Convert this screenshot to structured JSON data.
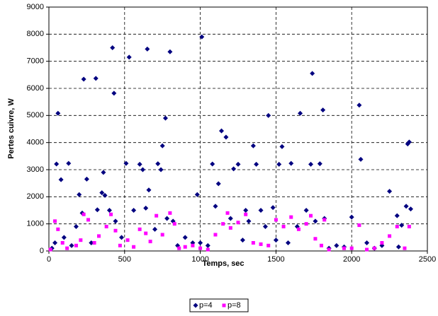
{
  "chart_data": {
    "type": "scatter",
    "x_label": "Temps, sec",
    "y_label": "Pertes cuivre, W",
    "xlim": [
      0,
      2500
    ],
    "xticks": [
      0,
      500,
      1000,
      1500,
      2000,
      2500
    ],
    "ylim": [
      0,
      9000
    ],
    "yticks": [
      0,
      1000,
      2000,
      3000,
      4000,
      5000,
      6000,
      7000,
      8000,
      9000
    ],
    "grid": true,
    "legend": "bottom",
    "series": [
      {
        "name": "p=4",
        "color": "#000080",
        "marker": "diamond",
        "x": [
          20,
          40,
          50,
          60,
          80,
          100,
          130,
          150,
          180,
          200,
          220,
          230,
          250,
          280,
          310,
          320,
          350,
          360,
          370,
          400,
          420,
          430,
          440,
          480,
          510,
          530,
          560,
          600,
          620,
          640,
          650,
          660,
          700,
          720,
          740,
          750,
          770,
          780,
          800,
          820,
          850,
          900,
          950,
          980,
          1000,
          1010,
          1050,
          1080,
          1100,
          1120,
          1140,
          1170,
          1200,
          1220,
          1250,
          1280,
          1300,
          1320,
          1350,
          1370,
          1400,
          1430,
          1450,
          1480,
          1500,
          1520,
          1540,
          1580,
          1600,
          1640,
          1660,
          1700,
          1730,
          1740,
          1760,
          1790,
          1810,
          1820,
          1850,
          1900,
          1950,
          2000,
          2050,
          2060,
          2100,
          2150,
          2200,
          2250,
          2300,
          2330,
          2370,
          2380,
          2360,
          2390,
          2310
        ],
        "values": [
          100,
          300,
          3210,
          5080,
          2630,
          500,
          3230,
          200,
          900,
          2080,
          1400,
          6340,
          2650,
          300,
          6370,
          1520,
          2150,
          2900,
          2050,
          1500,
          7500,
          5820,
          1100,
          500,
          3230,
          7150,
          1500,
          3200,
          3000,
          1580,
          7450,
          2250,
          800,
          3220,
          3000,
          3880,
          4900,
          1200,
          7350,
          1100,
          200,
          500,
          300,
          2080,
          300,
          7900,
          200,
          3210,
          1650,
          2480,
          4430,
          4200,
          1200,
          3030,
          3200,
          400,
          1500,
          1100,
          3880,
          3200,
          1500,
          900,
          5000,
          1600,
          400,
          3200,
          3850,
          300,
          3230,
          900,
          5080,
          1500,
          3200,
          6550,
          1100,
          3220,
          5200,
          1200,
          100,
          200,
          150,
          1250,
          5380,
          3380,
          300,
          100,
          200,
          2200,
          1300,
          950,
          3950,
          4020,
          1650,
          1550,
          150
        ]
      },
      {
        "name": "p=8",
        "color": "#ff00ff",
        "marker": "square",
        "x": [
          10,
          40,
          60,
          90,
          120,
          180,
          210,
          230,
          260,
          300,
          330,
          380,
          410,
          440,
          470,
          520,
          560,
          600,
          640,
          670,
          710,
          750,
          800,
          830,
          860,
          900,
          950,
          1000,
          1050,
          1100,
          1150,
          1180,
          1200,
          1250,
          1300,
          1350,
          1400,
          1450,
          1500,
          1550,
          1600,
          1650,
          1700,
          1730,
          1760,
          1800,
          1820,
          1850,
          1950,
          2000,
          2050,
          2100,
          2150,
          2200,
          2250,
          2300,
          2350,
          2380
        ],
        "values": [
          50,
          1100,
          800,
          300,
          100,
          200,
          400,
          1350,
          1150,
          300,
          550,
          900,
          1350,
          750,
          200,
          400,
          150,
          800,
          650,
          350,
          1300,
          600,
          1400,
          1000,
          100,
          150,
          200,
          100,
          50,
          600,
          1000,
          1400,
          850,
          1050,
          1350,
          300,
          250,
          200,
          1150,
          900,
          1250,
          800,
          1000,
          1300,
          450,
          200,
          1150,
          50,
          100,
          100,
          950,
          50,
          100,
          300,
          550,
          900,
          100,
          900
        ]
      }
    ]
  }
}
